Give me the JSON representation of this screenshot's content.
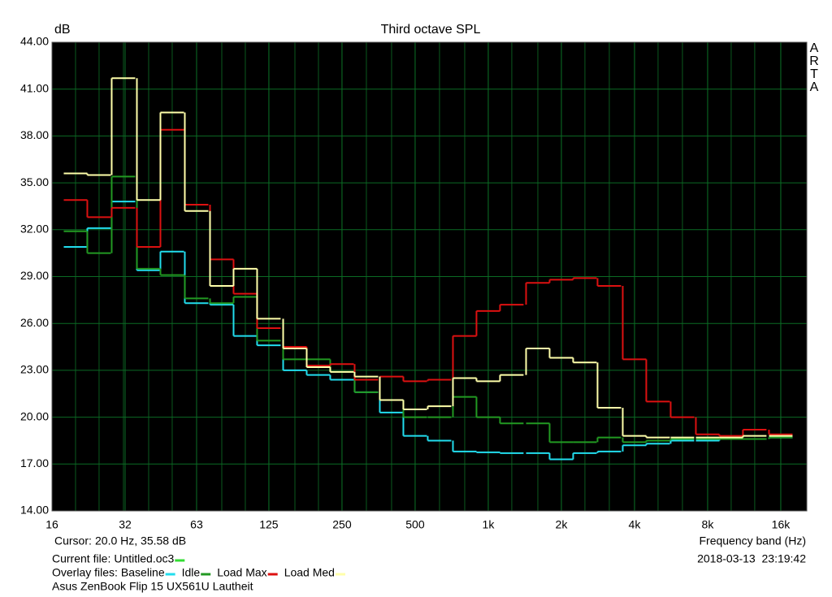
{
  "chart_data": {
    "type": "step",
    "title": "Third octave SPL",
    "y_label": "dB",
    "x_label": "Frequency band (Hz)",
    "watermark": [
      "A",
      "R",
      "T",
      "A"
    ],
    "log_x": true,
    "grid": true,
    "xlim": [
      16,
      20480
    ],
    "ylim": [
      14,
      44
    ],
    "xticks": [
      16,
      32,
      63,
      125,
      250,
      500,
      {
        "value": 1000,
        "label": "1k"
      },
      {
        "value": 2000,
        "label": "2k"
      },
      {
        "value": 4000,
        "label": "4k"
      },
      {
        "value": 8000,
        "label": "8k"
      },
      {
        "value": 16000,
        "label": "16k"
      }
    ],
    "yticks": [
      {
        "value": 14,
        "label": "14.00"
      },
      {
        "value": 17,
        "label": "17.00"
      },
      {
        "value": 20,
        "label": "20.00"
      },
      {
        "value": 23,
        "label": "23.00"
      },
      {
        "value": 26,
        "label": "26.00"
      },
      {
        "value": 29,
        "label": "29.00"
      },
      {
        "value": 32,
        "label": "32.00"
      },
      {
        "value": 35,
        "label": "35.00"
      },
      {
        "value": 38,
        "label": "38.00"
      },
      {
        "value": 41,
        "label": "41.00"
      },
      {
        "value": 44,
        "label": "44.00"
      }
    ],
    "x": [
      20,
      25,
      31.5,
      40,
      50,
      63,
      80,
      100,
      125,
      160,
      200,
      250,
      315,
      400,
      500,
      630,
      800,
      1000,
      1250,
      1600,
      2000,
      2500,
      3150,
      4000,
      5000,
      6300,
      8000,
      10000,
      12500,
      16000
    ],
    "series": [
      {
        "name": "Baseline",
        "color": "#22ddee",
        "values": [
          30.9,
          32.1,
          33.8,
          29.4,
          30.6,
          27.3,
          27.2,
          25.2,
          24.6,
          23.0,
          22.7,
          22.4,
          21.6,
          20.3,
          18.8,
          18.5,
          17.8,
          17.75,
          17.7,
          17.7,
          17.3,
          17.7,
          17.8,
          18.2,
          18.3,
          18.5,
          18.5,
          18.6,
          18.6,
          18.7
        ]
      },
      {
        "name": "Idle",
        "color": "#229922",
        "values": [
          31.9,
          30.5,
          35.4,
          29.5,
          29.1,
          27.6,
          27.3,
          27.7,
          24.9,
          23.7,
          23.7,
          22.9,
          21.6,
          21.1,
          20.0,
          20.0,
          21.3,
          20.0,
          19.6,
          19.6,
          18.4,
          18.4,
          18.7,
          18.4,
          18.5,
          18.6,
          18.6,
          18.6,
          18.6,
          18.7
        ]
      },
      {
        "name": "Load Max",
        "color": "#dd1111",
        "values": [
          33.9,
          32.8,
          33.4,
          30.9,
          38.4,
          33.6,
          30.1,
          27.9,
          25.7,
          24.5,
          23.3,
          23.4,
          22.4,
          22.6,
          22.3,
          22.4,
          25.2,
          26.8,
          27.2,
          28.6,
          28.8,
          28.9,
          28.4,
          23.7,
          21.0,
          20.0,
          18.9,
          18.8,
          19.2,
          18.9
        ]
      },
      {
        "name": "Load Med",
        "color": "#ffffaa",
        "values": [
          35.6,
          35.5,
          41.7,
          33.9,
          39.5,
          33.2,
          28.4,
          29.5,
          26.3,
          24.4,
          23.2,
          22.9,
          22.6,
          21.1,
          20.5,
          20.7,
          22.5,
          22.3,
          22.7,
          24.4,
          23.8,
          23.5,
          20.6,
          18.8,
          18.7,
          18.7,
          18.7,
          18.7,
          18.8,
          18.8
        ]
      }
    ],
    "cursor": {
      "label": "Cursor:",
      "text": "20.0 Hz, 35.58 dB"
    },
    "current_file": {
      "label": "Current file:",
      "name": "Untitled.oc3",
      "color": "#33dd33"
    },
    "overlay_label": "Overlay files:",
    "timestamp": "2018-03-13  23:19:42",
    "caption": "Asus ZenBook Flip 15 UX561U Lautheit"
  }
}
